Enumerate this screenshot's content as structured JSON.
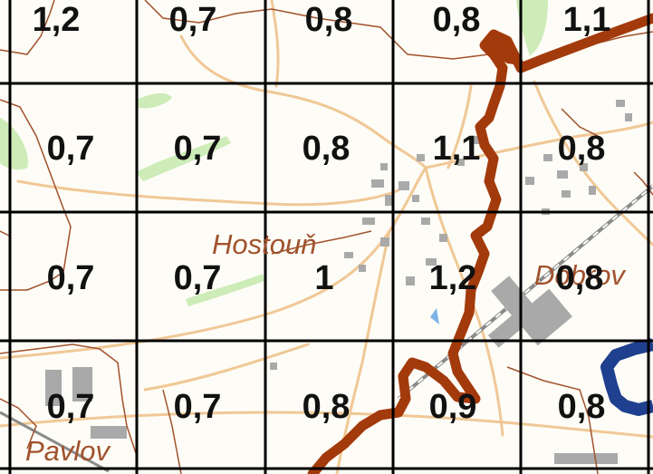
{
  "map": {
    "grid_values": [
      [
        "1,2",
        "0,7",
        "0,8",
        "0,8",
        "1,1"
      ],
      [
        "0,7",
        "0,7",
        "0,8",
        "1,1",
        "0,8"
      ],
      [
        "0,7",
        "0,7",
        "1",
        "1,2",
        "0,8"
      ],
      [
        "0,7",
        "0,7",
        "0,8",
        "0,9",
        "0,8"
      ]
    ],
    "places": {
      "hostoun": "Hostouň",
      "dobrovic": "Dobrov",
      "pavlov": "Pavlov"
    },
    "colors": {
      "background": "#fefcf6",
      "grid_line": "#000000",
      "road": "#f0c896",
      "boundary": "#a0522d",
      "trail": "#a33a0b",
      "water": "#1f3f8f",
      "built_up": "#a9a9a9",
      "green": "#cdecb8",
      "place_label": "#a0522d"
    }
  }
}
